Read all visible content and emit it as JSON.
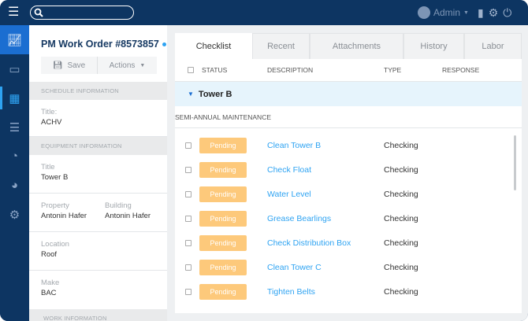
{
  "topbar": {
    "user": "Admin",
    "icons": [
      "menu-icon",
      "search-icon",
      "user-icon",
      "book-icon",
      "gear-icon",
      "power-icon"
    ]
  },
  "sidebar": {
    "items": [
      {
        "icon": "chart-icon",
        "active": true
      },
      {
        "icon": "briefcase-icon"
      },
      {
        "icon": "building-icon",
        "selected": true
      },
      {
        "icon": "checklist-icon"
      },
      {
        "icon": "gauge-icon"
      },
      {
        "icon": "pie-chart-icon"
      },
      {
        "icon": "settings-icon"
      }
    ]
  },
  "work_order": {
    "title": "PM Work Order #8573857",
    "save_label": "Save",
    "actions_label": "Actions"
  },
  "sections": {
    "schedule": "SCHEDULE INFORMATION",
    "equipment": "EQUIPMENT INFORMATION",
    "work": "WORK INFORMATION"
  },
  "fields": {
    "schedule_title": {
      "label": "Title:",
      "value": "ACHV"
    },
    "equip_title": {
      "label": "Title",
      "value": "Tower B"
    },
    "property": {
      "label": "Property",
      "value": "Antonin Hafer"
    },
    "building": {
      "label": "Building",
      "value": "Antonin Hafer"
    },
    "location": {
      "label": "Location",
      "value": "Roof"
    },
    "make": {
      "label": "Make",
      "value": "BAC"
    }
  },
  "tabs": [
    "Checklist",
    "Recent",
    "Attachments",
    "History",
    "Labor"
  ],
  "columns": {
    "status": "STATUS",
    "description": "DESCRIPTION",
    "type": "TYPE",
    "response": "RESPONSE"
  },
  "group": "Tower B",
  "subgroup": "SEMI-ANNUAL MAINTENANCE",
  "rows": [
    {
      "status": "Pending",
      "description": "Clean Tower B",
      "type": "Checking"
    },
    {
      "status": "Pending",
      "description": "Check Float",
      "type": "Checking"
    },
    {
      "status": "Pending",
      "description": "Water Level",
      "type": "Checking"
    },
    {
      "status": "Pending",
      "description": "Grease Bearlings",
      "type": "Checking"
    },
    {
      "status": "Pending",
      "description": "Check Distribution Box",
      "type": "Checking"
    },
    {
      "status": "Pending",
      "description": "Clean Tower C",
      "type": "Checking"
    },
    {
      "status": "Pending",
      "description": "Tighten Belts",
      "type": "Checking"
    }
  ],
  "colors": {
    "navy": "#0d3562",
    "accent": "#1b6ed1",
    "link": "#2ea3f2",
    "pending": "#fdc97b"
  }
}
